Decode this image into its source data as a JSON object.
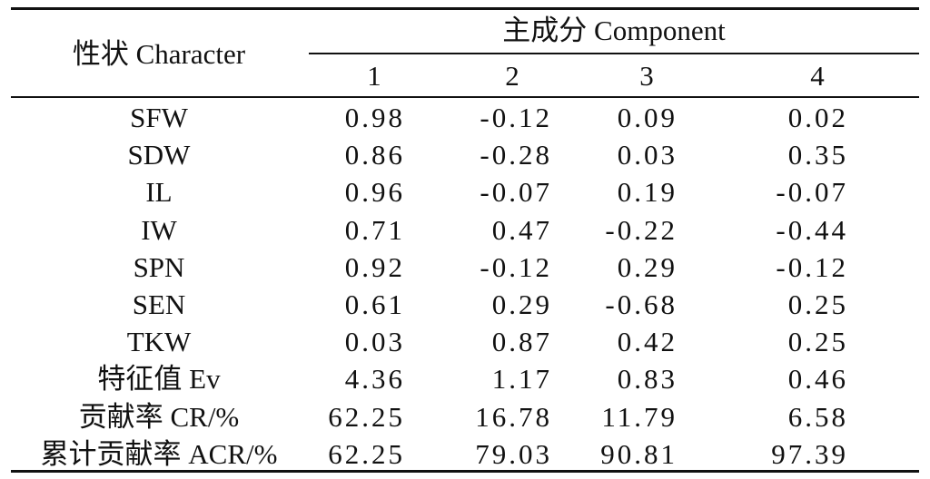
{
  "table": {
    "header": {
      "row_label": "性状 Character",
      "group_label": "主成分 Component",
      "components": [
        "1",
        "2",
        "3",
        "4"
      ]
    },
    "rows": [
      {
        "label": "SFW",
        "values": [
          "0.98",
          "-0.12",
          "0.09",
          "0.02"
        ]
      },
      {
        "label": "SDW",
        "values": [
          "0.86",
          "-0.28",
          "0.03",
          "0.35"
        ]
      },
      {
        "label": "IL",
        "values": [
          "0.96",
          "-0.07",
          "0.19",
          "-0.07"
        ]
      },
      {
        "label": "IW",
        "values": [
          "0.71",
          "0.47",
          "-0.22",
          "-0.44"
        ]
      },
      {
        "label": "SPN",
        "values": [
          "0.92",
          "-0.12",
          "0.29",
          "-0.12"
        ]
      },
      {
        "label": "SEN",
        "values": [
          "0.61",
          "0.29",
          "-0.68",
          "0.25"
        ]
      },
      {
        "label": "TKW",
        "values": [
          "0.03",
          "0.87",
          "0.42",
          "0.25"
        ]
      },
      {
        "label": "特征值 Ev",
        "values": [
          "4.36",
          "1.17",
          "0.83",
          "0.46"
        ]
      },
      {
        "label": "贡献率 CR/%",
        "values": [
          "62.25",
          "16.78",
          "11.79",
          "6.58"
        ]
      },
      {
        "label": "累计贡献率 ACR/%",
        "values": [
          "62.25",
          "79.03",
          "90.81",
          "97.39"
        ]
      }
    ]
  }
}
